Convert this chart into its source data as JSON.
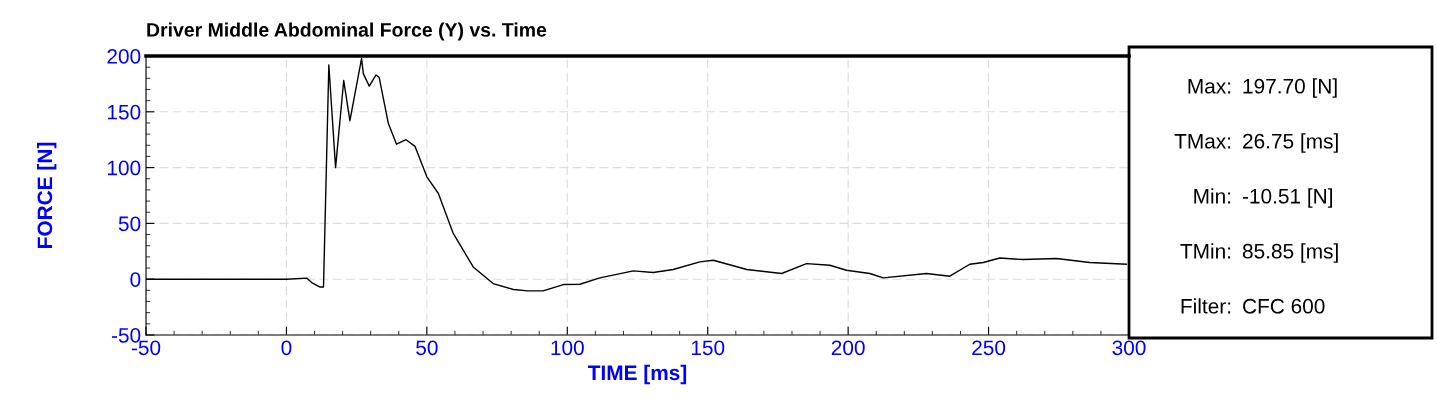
{
  "chart_data": {
    "type": "line",
    "title": "Driver Middle Abdominal Force (Y) vs. Time",
    "xlabel": "TIME [ms]",
    "ylabel": "FORCE [N]",
    "series": [
      {
        "color": "#000000",
        "x": [
          -50,
          0,
          7.2,
          9,
          12,
          13.2,
          15.1,
          17.5,
          20.4,
          22.6,
          26.75,
          27.4,
          29.5,
          31.9,
          33,
          36.3,
          39.2,
          42.6,
          45.8,
          50,
          54.1,
          59.4,
          66.5,
          73.6,
          80.8,
          85.85,
          91.4,
          98.6,
          104.5,
          111.6,
          123.5,
          130.6,
          137.7,
          147.2,
          152,
          163.9,
          176.3,
          185.2,
          193.5,
          199.4,
          207.7,
          212.5,
          227.9,
          236.2,
          243.3,
          248.1,
          254,
          262.3,
          274.2,
          286,
          299
        ],
        "values": [
          0,
          0,
          1,
          -3,
          -7,
          -7,
          192,
          100,
          178,
          142,
          197.7,
          184,
          173,
          183,
          181,
          139.5,
          121,
          125,
          119,
          91.7,
          76.8,
          41,
          11,
          -3.9,
          -9.2,
          -10.51,
          -10.5,
          -4.8,
          -4.5,
          1.2,
          7.5,
          6,
          8.7,
          15.5,
          17,
          8.7,
          5.1,
          14,
          12.5,
          8,
          5.1,
          1.2,
          5.1,
          2.7,
          13.4,
          15,
          19,
          17.6,
          18.5,
          15,
          13.4
        ]
      }
    ],
    "xlim": [
      -50,
      300
    ],
    "xticks": [
      -50,
      0,
      50,
      100,
      150,
      200,
      250,
      300
    ],
    "ylim": [
      -50,
      200
    ],
    "yticks": [
      -50,
      0,
      50,
      100,
      150,
      200
    ],
    "grid": true,
    "legend": false,
    "marker": "none",
    "line_style": "solid",
    "annotations": [
      "Max:",
      "197.70 [N]",
      "TMax:",
      "26.75 [ms]",
      "Min:",
      "-10.51 [N]",
      "TMin:",
      "85.85 [ms]",
      "Filter:",
      "CFC 600"
    ]
  }
}
